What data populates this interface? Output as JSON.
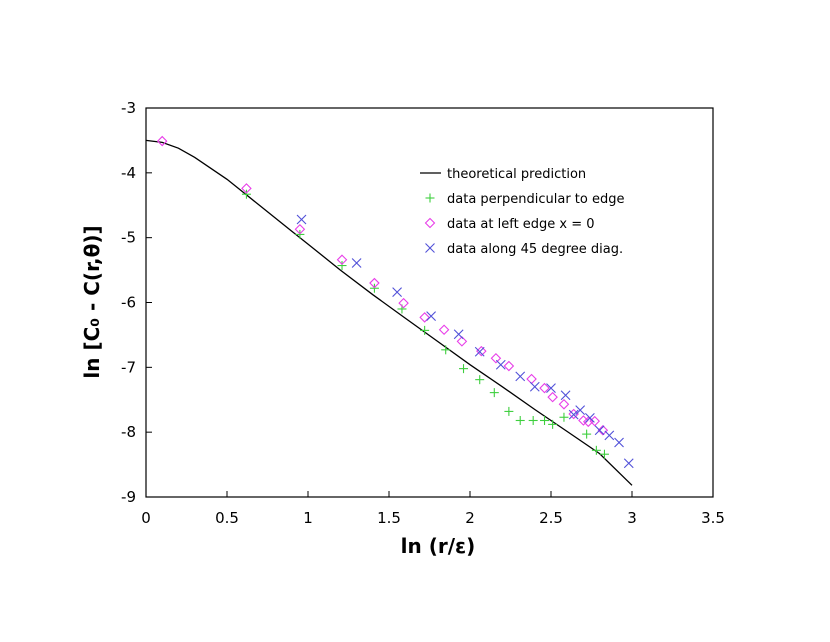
{
  "chart_data": {
    "type": "scatter",
    "xlabel": "ln (r/ε)",
    "ylabel": "ln [C₀ - C(r,θ)]",
    "xlim": [
      0,
      3.5
    ],
    "ylim": [
      -9,
      -3
    ],
    "xticks": [
      0,
      0.5,
      1,
      1.5,
      2,
      2.5,
      3,
      3.5
    ],
    "xtick_labels": [
      "0",
      "0.5",
      "1",
      "1.5",
      "2",
      "2.5",
      "3",
      "3.5"
    ],
    "yticks": [
      -9,
      -8,
      -7,
      -6,
      -5,
      -4,
      -3
    ],
    "ytick_labels": [
      "-9",
      "-8",
      "-7",
      "-6",
      "-5",
      "-4",
      "-3"
    ],
    "grid": false,
    "legend_position": "top-right",
    "series": [
      {
        "name": "theoretical prediction",
        "kind": "line",
        "color": "#000000",
        "x": [
          0,
          0.1,
          0.2,
          0.3,
          0.4,
          0.5,
          0.6,
          0.7,
          0.8,
          0.9,
          1.0,
          1.2,
          1.4,
          1.6,
          1.8,
          2.0,
          2.2,
          2.4,
          2.6,
          2.8,
          3.0
        ],
        "y": [
          -3.5,
          -3.53,
          -3.62,
          -3.76,
          -3.93,
          -4.1,
          -4.3,
          -4.5,
          -4.7,
          -4.9,
          -5.1,
          -5.5,
          -5.88,
          -6.24,
          -6.6,
          -6.96,
          -7.3,
          -7.65,
          -7.99,
          -8.33,
          -8.82
        ]
      },
      {
        "name": "data perpendicular to edge",
        "kind": "plus",
        "color": "#3ecf3e",
        "x": [
          0.62,
          0.95,
          1.21,
          1.41,
          1.58,
          1.72,
          1.85,
          1.96,
          2.06,
          2.15,
          2.24,
          2.31,
          2.39,
          2.46,
          2.51,
          2.58,
          2.72,
          2.78,
          2.83
        ],
        "y": [
          -4.33,
          -4.95,
          -5.43,
          -5.78,
          -6.1,
          -6.43,
          -6.73,
          -7.02,
          -7.19,
          -7.39,
          -7.68,
          -7.82,
          -7.82,
          -7.82,
          -7.88,
          -7.77,
          -8.03,
          -8.28,
          -8.34
        ]
      },
      {
        "name": "data at left edge x = 0",
        "kind": "diamond",
        "color": "#e83ee8",
        "x": [
          0.1,
          0.62,
          0.95,
          1.21,
          1.41,
          1.59,
          1.72,
          1.84,
          1.95,
          2.07,
          2.16,
          2.24,
          2.38,
          2.46,
          2.51,
          2.58,
          2.64,
          2.7,
          2.73,
          2.77,
          2.82
        ],
        "y": [
          -3.51,
          -4.24,
          -4.87,
          -5.34,
          -5.7,
          -6.01,
          -6.23,
          -6.42,
          -6.6,
          -6.75,
          -6.86,
          -6.98,
          -7.18,
          -7.32,
          -7.46,
          -7.57,
          -7.72,
          -7.82,
          -7.84,
          -7.83,
          -7.97
        ]
      },
      {
        "name": "data along 45 degree diag.",
        "kind": "cross",
        "color": "#5050d8",
        "x": [
          0.96,
          1.3,
          1.55,
          1.76,
          1.93,
          2.06,
          2.19,
          2.31,
          2.4,
          2.5,
          2.59,
          2.64,
          2.68,
          2.74,
          2.8,
          2.86,
          2.92,
          2.98
        ],
        "y": [
          -4.72,
          -5.39,
          -5.84,
          -6.21,
          -6.49,
          -6.76,
          -6.96,
          -7.14,
          -7.3,
          -7.32,
          -7.43,
          -7.73,
          -7.66,
          -7.78,
          -7.97,
          -8.05,
          -8.16,
          -8.48
        ]
      }
    ]
  }
}
